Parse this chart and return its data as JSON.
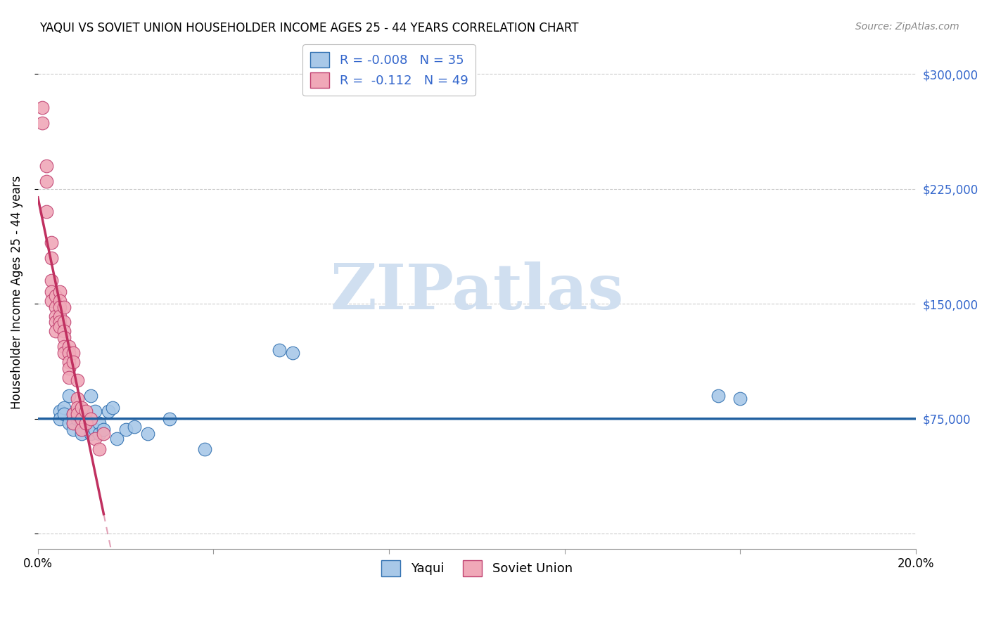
{
  "title": "YAQUI VS SOVIET UNION HOUSEHOLDER INCOME AGES 25 - 44 YEARS CORRELATION CHART",
  "source": "Source: ZipAtlas.com",
  "ylabel": "Householder Income Ages 25 - 44 years",
  "xlim": [
    0.0,
    0.2
  ],
  "ylim": [
    -10000,
    325000
  ],
  "yticks": [
    0,
    75000,
    150000,
    225000,
    300000
  ],
  "legend_r_yaqui": "-0.008",
  "legend_n_yaqui": "35",
  "legend_r_soviet": "-0.112",
  "legend_n_soviet": "49",
  "color_yaqui_fill": "#A8C8E8",
  "color_yaqui_edge": "#3070B0",
  "color_soviet_fill": "#F0A8B8",
  "color_soviet_edge": "#C04070",
  "color_line_yaqui": "#2060A0",
  "color_line_soviet": "#C03060",
  "color_text_right": "#3366CC",
  "color_grid": "#CCCCCC",
  "watermark_color": "#D0DFF0",
  "yaqui_x": [
    0.005,
    0.005,
    0.006,
    0.006,
    0.007,
    0.007,
    0.008,
    0.008,
    0.008,
    0.009,
    0.009,
    0.01,
    0.01,
    0.01,
    0.011,
    0.011,
    0.012,
    0.012,
    0.013,
    0.013,
    0.014,
    0.014,
    0.015,
    0.016,
    0.017,
    0.018,
    0.02,
    0.022,
    0.025,
    0.03,
    0.038,
    0.055,
    0.058,
    0.155,
    0.16
  ],
  "yaqui_y": [
    80000,
    75000,
    82000,
    78000,
    90000,
    72000,
    78000,
    72000,
    68000,
    80000,
    75000,
    72000,
    68000,
    65000,
    75000,
    72000,
    90000,
    65000,
    80000,
    68000,
    72000,
    65000,
    68000,
    80000,
    82000,
    62000,
    68000,
    70000,
    65000,
    75000,
    55000,
    120000,
    118000,
    90000,
    88000
  ],
  "soviet_x": [
    0.001,
    0.001,
    0.002,
    0.002,
    0.002,
    0.003,
    0.003,
    0.003,
    0.003,
    0.003,
    0.004,
    0.004,
    0.004,
    0.004,
    0.004,
    0.005,
    0.005,
    0.005,
    0.005,
    0.005,
    0.005,
    0.006,
    0.006,
    0.006,
    0.006,
    0.006,
    0.006,
    0.007,
    0.007,
    0.007,
    0.007,
    0.007,
    0.008,
    0.008,
    0.008,
    0.008,
    0.009,
    0.009,
    0.009,
    0.009,
    0.01,
    0.01,
    0.01,
    0.011,
    0.011,
    0.012,
    0.013,
    0.014,
    0.015
  ],
  "soviet_y": [
    278000,
    268000,
    240000,
    230000,
    210000,
    190000,
    180000,
    165000,
    158000,
    152000,
    155000,
    148000,
    142000,
    138000,
    132000,
    158000,
    152000,
    148000,
    142000,
    138000,
    135000,
    148000,
    138000,
    132000,
    128000,
    122000,
    118000,
    122000,
    118000,
    112000,
    108000,
    102000,
    118000,
    112000,
    78000,
    72000,
    100000,
    88000,
    82000,
    78000,
    82000,
    75000,
    68000,
    80000,
    72000,
    75000,
    62000,
    55000,
    65000
  ]
}
